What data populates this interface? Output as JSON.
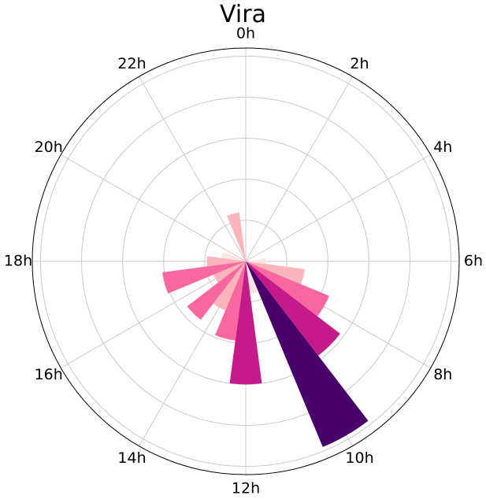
{
  "chart_data": {
    "type": "polar-bar",
    "title": "Vira",
    "theta_tick_labels": [
      "0h",
      "2h",
      "4h",
      "6h",
      "8h",
      "10h",
      "12h",
      "14h",
      "16h",
      "18h",
      "20h",
      "22h"
    ],
    "theta_direction": "clockwise",
    "theta_zero": "top",
    "grid": true,
    "r_grid_values": [
      1,
      2,
      3,
      4,
      5
    ],
    "r_max": 5.2,
    "hours": [
      {
        "hour": 0,
        "value": 0.0
      },
      {
        "hour": 1,
        "value": 0.0
      },
      {
        "hour": 2,
        "value": 0.0
      },
      {
        "hour": 3,
        "value": 0.0
      },
      {
        "hour": 4,
        "value": 0.0
      },
      {
        "hour": 5,
        "value": 0.0
      },
      {
        "hour": 6,
        "value": 0.5
      },
      {
        "hour": 7,
        "value": 1.45
      },
      {
        "hour": 8,
        "value": 2.2
      },
      {
        "hour": 9,
        "value": 2.9
      },
      {
        "hour": 10,
        "value": 4.9
      },
      {
        "hour": 11,
        "value": 0.8
      },
      {
        "hour": 12,
        "value": 3.0
      },
      {
        "hour": 13,
        "value": 1.95
      },
      {
        "hour": 14,
        "value": 1.3
      },
      {
        "hour": 15,
        "value": 1.8
      },
      {
        "hour": 16,
        "value": 0.85
      },
      {
        "hour": 17,
        "value": 2.05
      },
      {
        "hour": 18,
        "value": 0.95
      },
      {
        "hour": 19,
        "value": 0.6
      },
      {
        "hour": 20,
        "value": 0.0
      },
      {
        "hour": 21,
        "value": 0.0
      },
      {
        "hour": 22,
        "value": 0.0
      },
      {
        "hour": 23,
        "value": 1.2
      }
    ],
    "colorscale": [
      "#fde4e1",
      "#fbb4b9",
      "#f768a1",
      "#c51b8a",
      "#7a0177",
      "#49006a"
    ]
  }
}
